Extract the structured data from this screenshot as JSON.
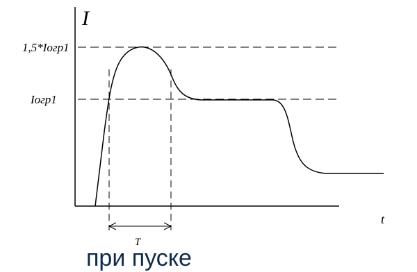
{
  "axes": {
    "y_label": "I",
    "x_label": "t"
  },
  "levels": [
    {
      "label": "1,5*Iогр1"
    },
    {
      "label": "Iогр1"
    }
  ],
  "interval": {
    "label": "T"
  },
  "caption": "при пуске"
}
